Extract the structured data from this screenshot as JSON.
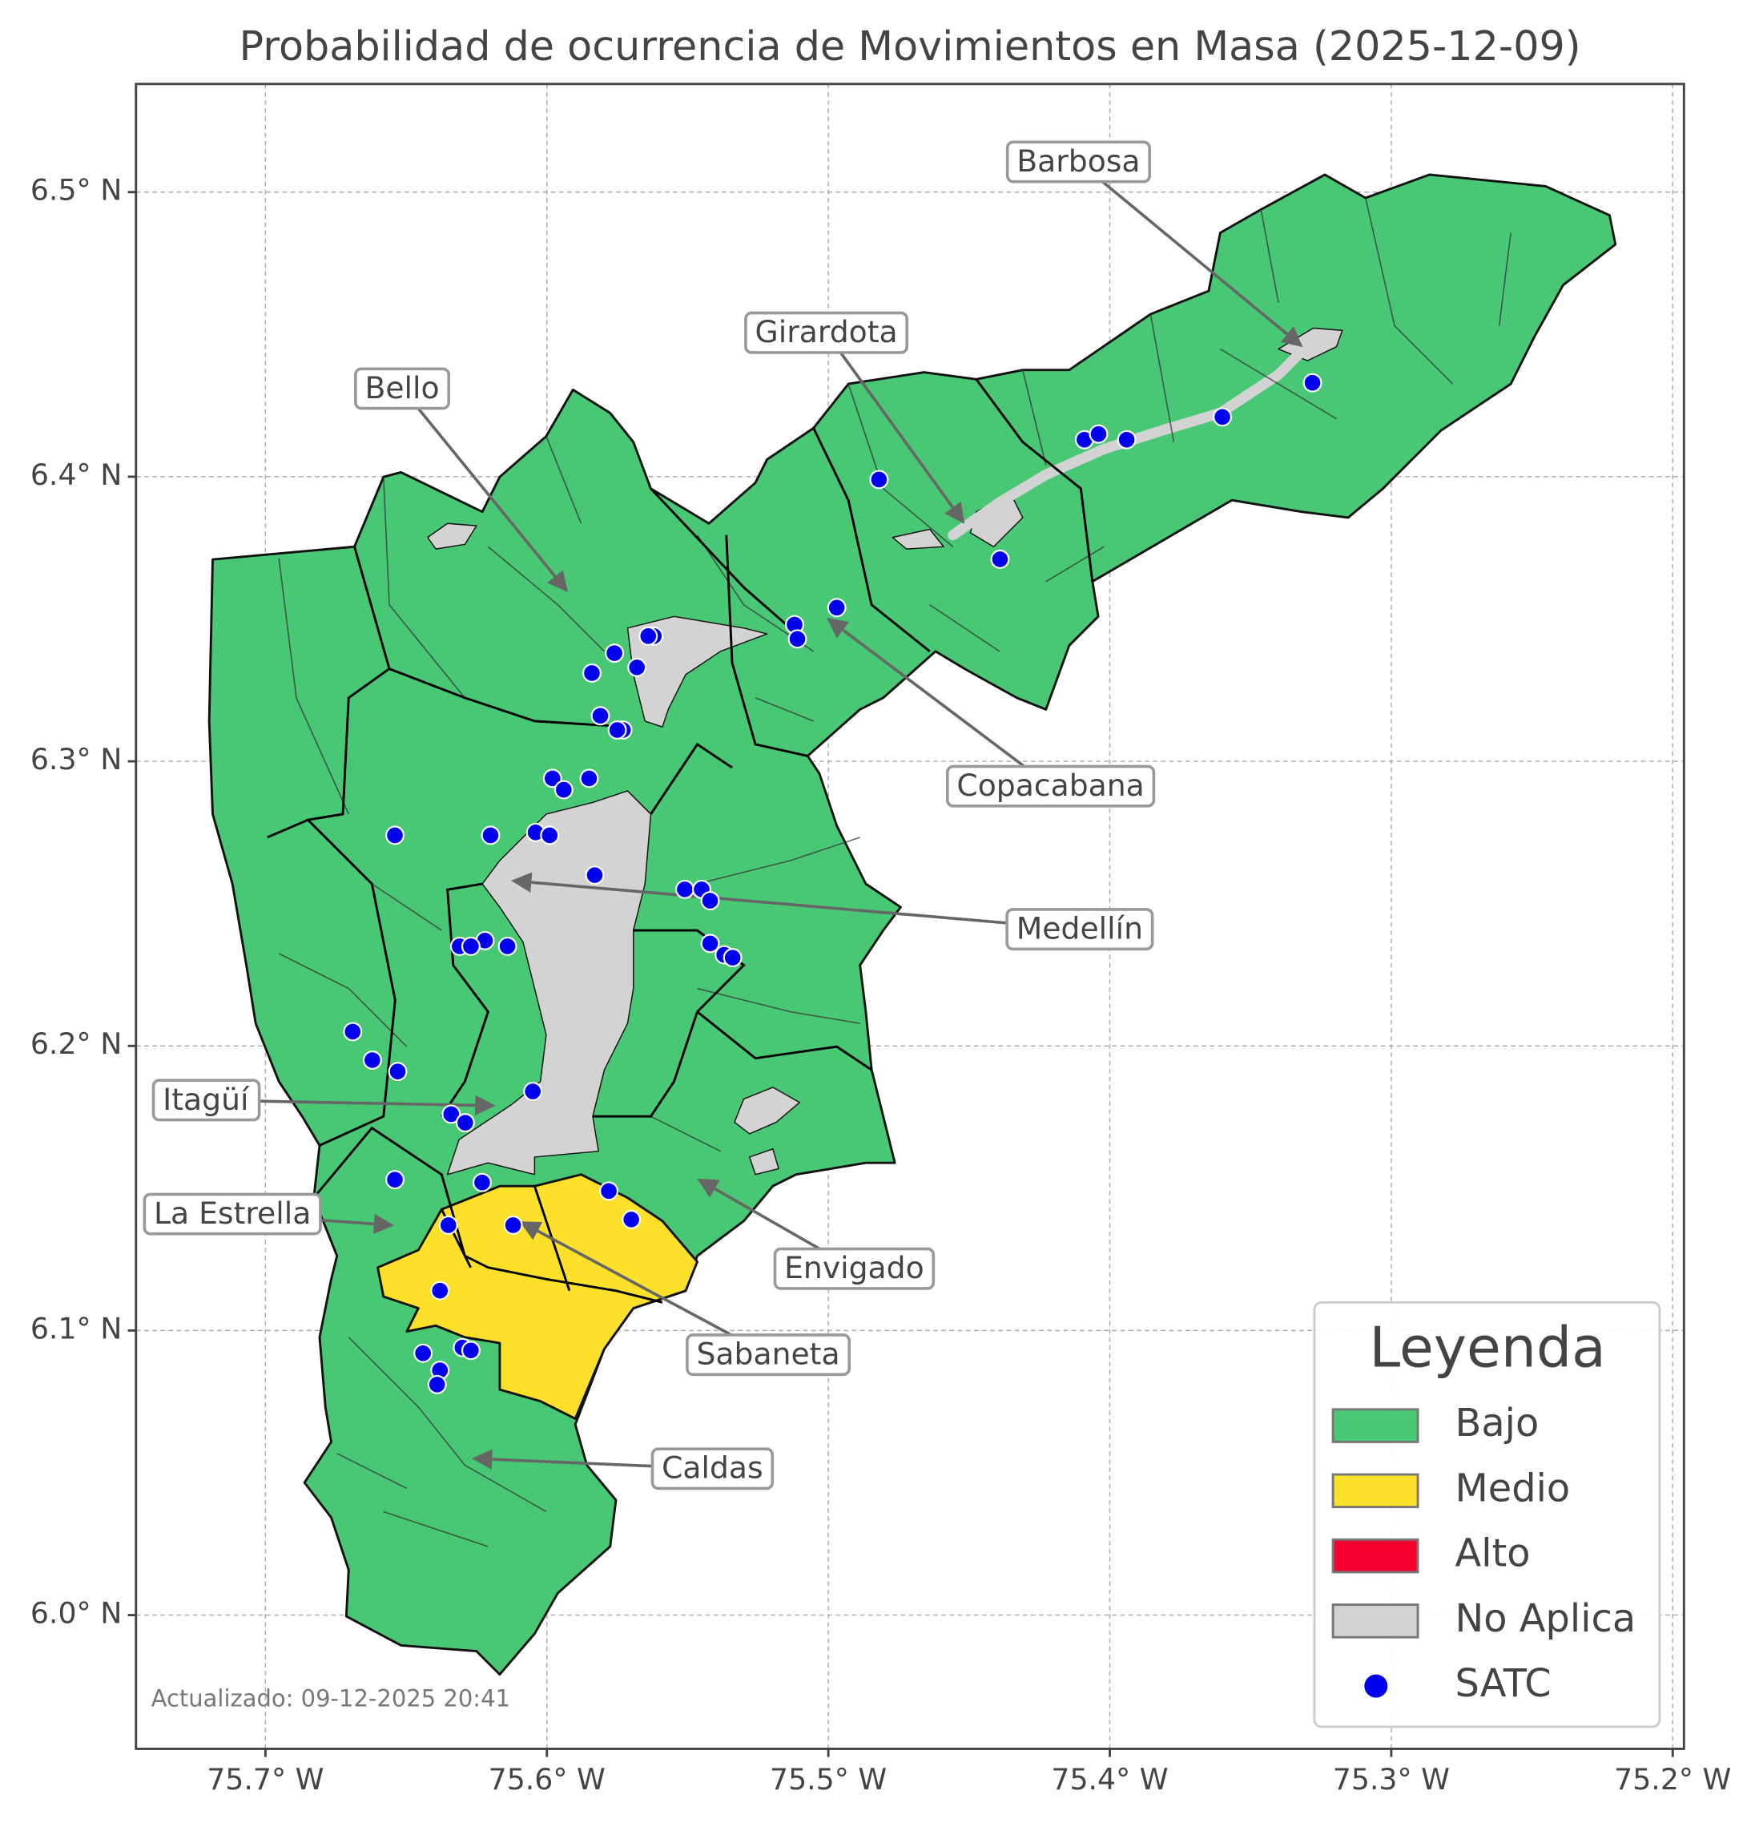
{
  "chart_data": {
    "type": "map",
    "title": "Probabilidad de ocurrencia de Movimientos en Masa (2025-12-09)",
    "footer": "Actualizado: 09-12-2025 20:41",
    "xlim": [
      -75.746,
      -75.196
    ],
    "ylim": [
      5.953,
      6.538
    ],
    "xticks": [
      {
        "value": -75.7,
        "label": "75.7° W"
      },
      {
        "value": -75.6,
        "label": "75.6° W"
      },
      {
        "value": -75.5,
        "label": "75.5° W"
      },
      {
        "value": -75.4,
        "label": "75.4° W"
      },
      {
        "value": -75.3,
        "label": "75.3° W"
      },
      {
        "value": -75.2,
        "label": "75.2° W"
      }
    ],
    "yticks": [
      {
        "value": 6.0,
        "label": "6.0° N"
      },
      {
        "value": 6.1,
        "label": "6.1° N"
      },
      {
        "value": 6.2,
        "label": "6.2° N"
      },
      {
        "value": 6.3,
        "label": "6.3° N"
      },
      {
        "value": 6.4,
        "label": "6.4° N"
      },
      {
        "value": 6.5,
        "label": "6.5° N"
      }
    ],
    "grid": true,
    "legend": {
      "title": "Leyenda",
      "items": [
        {
          "name": "Bajo",
          "color": "#48c774"
        },
        {
          "name": "Medio",
          "color": "#fde02a"
        },
        {
          "name": "Alto",
          "color": "#f5002f"
        },
        {
          "name": "No Aplica",
          "color": "#d3d3d3"
        }
      ]
    },
    "satc": {
      "name": "SATC",
      "color": "#0000ee",
      "lon": [
        -75.482,
        -75.409,
        -75.404,
        -75.394,
        -75.36,
        -75.328,
        -75.439,
        -75.497,
        -75.512,
        -75.511,
        -75.562,
        -75.564,
        -75.576,
        -75.568,
        -75.584,
        -75.581,
        -75.573,
        -75.575,
        -75.598,
        -75.594,
        -75.585,
        -75.654,
        -75.62,
        -75.604,
        -75.599,
        -75.583,
        -75.551,
        -75.545,
        -75.542,
        -75.542,
        -75.537,
        -75.534,
        -75.622,
        -75.631,
        -75.627,
        -75.614,
        -75.669,
        -75.662,
        -75.653,
        -75.605,
        -75.634,
        -75.629,
        -75.654,
        -75.623,
        -75.578,
        -75.57,
        -75.635,
        -75.612,
        -75.638,
        -75.63,
        -75.627,
        -75.644,
        -75.638,
        -75.639
      ],
      "lat": [
        6.399,
        6.413,
        6.415,
        6.413,
        6.421,
        6.433,
        6.371,
        6.354,
        6.348,
        6.343,
        6.344,
        6.344,
        6.338,
        6.333,
        6.331,
        6.316,
        6.311,
        6.311,
        6.294,
        6.29,
        6.294,
        6.274,
        6.274,
        6.275,
        6.274,
        6.26,
        6.255,
        6.255,
        6.251,
        6.236,
        6.232,
        6.231,
        6.237,
        6.235,
        6.235,
        6.235,
        6.205,
        6.195,
        6.191,
        6.184,
        6.176,
        6.173,
        6.153,
        6.152,
        6.149,
        6.139,
        6.137,
        6.137,
        6.114,
        6.094,
        6.093,
        6.092,
        6.086,
        6.081
      ]
    },
    "annotations": [
      {
        "text": "Barbosa",
        "lon": -75.332,
        "lat": 6.446
      },
      {
        "text": "Girardota",
        "lon": -75.452,
        "lat": 6.384
      },
      {
        "text": "Bello",
        "lon": -75.593,
        "lat": 6.36
      },
      {
        "text": "Copacabana",
        "lon": -75.5,
        "lat": 6.35
      },
      {
        "text": "Medellín",
        "lon": -75.612,
        "lat": 6.258
      },
      {
        "text": "Itagüí",
        "lon": -75.619,
        "lat": 6.179
      },
      {
        "text": "La Estrella",
        "lon": -75.655,
        "lat": 6.137
      },
      {
        "text": "Envigado",
        "lon": -75.546,
        "lat": 6.153
      },
      {
        "text": "Sabaneta",
        "lon": -75.609,
        "lat": 6.138
      },
      {
        "text": "Caldas",
        "lon": -75.626,
        "lat": 6.055
      }
    ]
  }
}
